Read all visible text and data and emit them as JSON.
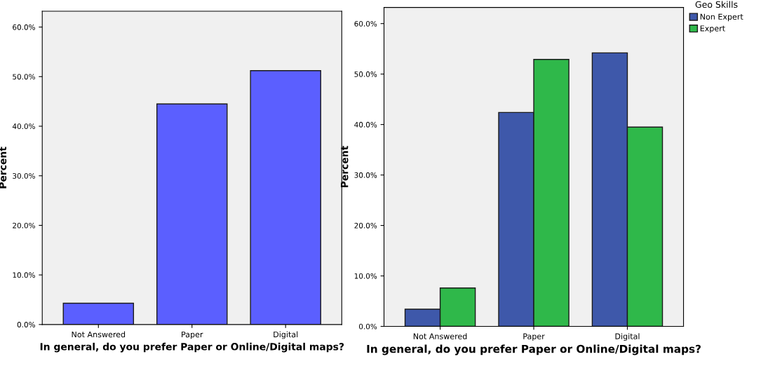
{
  "chart_data": [
    {
      "type": "bar",
      "xlabel": "In general, do you prefer Paper or Online/Digital maps?",
      "ylabel": "Percent",
      "categories": [
        "Not Answered",
        "Paper",
        "Digital"
      ],
      "series": [
        {
          "color": "#5b5fff",
          "values": [
            4.3,
            44.5,
            51.2
          ]
        }
      ],
      "ylim": [
        0,
        63.2
      ],
      "yticks": [
        {
          "value": 0,
          "label": "0.0%"
        },
        {
          "value": 10,
          "label": "10.0%"
        },
        {
          "value": 20,
          "label": "20.0%"
        },
        {
          "value": 30,
          "label": "30.0%"
        },
        {
          "value": 40,
          "label": "40.0%"
        },
        {
          "value": 50,
          "label": "50.0%"
        },
        {
          "value": 60,
          "label": "60.0%"
        }
      ],
      "grid": false,
      "legend": false
    },
    {
      "type": "bar",
      "xlabel": "In general, do you prefer Paper or Online/Digital maps?",
      "ylabel": "Percent",
      "legend_title": "Geo Skills",
      "categories": [
        "Not Answered",
        "Paper",
        "Digital"
      ],
      "series": [
        {
          "name": "Non Expert",
          "color": "#3e58aa",
          "values": [
            3.4,
            42.4,
            54.2
          ]
        },
        {
          "name": "Expert",
          "color": "#2fb84a",
          "values": [
            7.6,
            52.9,
            39.5
          ]
        }
      ],
      "ylim": [
        0,
        63.2
      ],
      "yticks": [
        {
          "value": 0,
          "label": "0.0%"
        },
        {
          "value": 10,
          "label": "10.0%"
        },
        {
          "value": 20,
          "label": "20.0%"
        },
        {
          "value": 30,
          "label": "30.0%"
        },
        {
          "value": 40,
          "label": "40.0%"
        },
        {
          "value": 50,
          "label": "50.0%"
        },
        {
          "value": 60,
          "label": "60.0%"
        }
      ],
      "grid": false,
      "legend": "right"
    }
  ]
}
